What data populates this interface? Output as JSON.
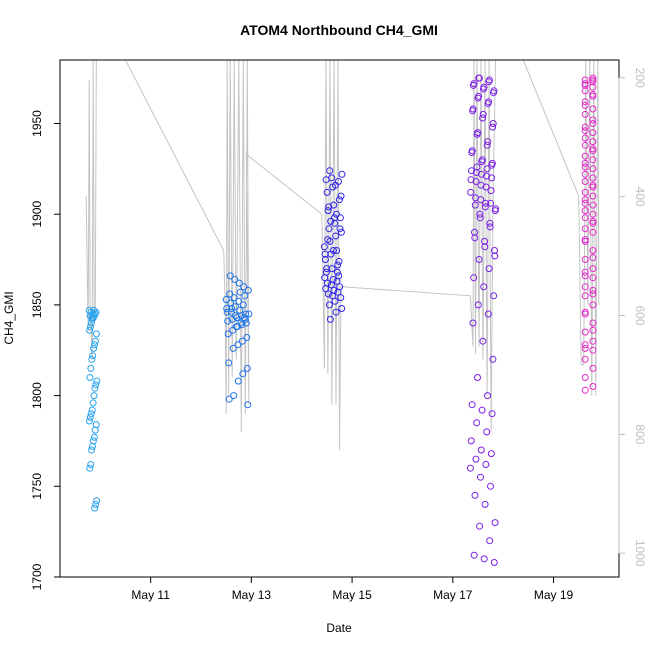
{
  "chart_data": {
    "type": "scatter",
    "title": "ATOM4 Northbound CH4_GMI",
    "xlabel": "Date",
    "ylabel": "CH4_GMI",
    "x_ticks": [
      "May 11",
      "May 13",
      "May 15",
      "May 17",
      "May 19"
    ],
    "x_tick_days": [
      11,
      13,
      15,
      17,
      19
    ],
    "xlim": [
      9.2,
      20.3
    ],
    "ylim": [
      1700,
      1985
    ],
    "y_ticks": [
      1700,
      1750,
      1800,
      1850,
      1900,
      1950
    ],
    "right_axis": {
      "ticks": [
        200,
        400,
        600,
        800,
        1000
      ],
      "lim": [
        1040,
        170
      ],
      "color": "#bfbfbf"
    },
    "series": [
      {
        "color": "#29a3ef",
        "clusters": [
          {
            "day_range": [
              9.78,
              9.93
            ],
            "y": [
              1847,
              1846,
              1845,
              1844,
              1843,
              1842,
              1840,
              1838,
              1836,
              1834,
              1830,
              1828,
              1826,
              1822,
              1820,
              1815,
              1810,
              1808,
              1806,
              1804,
              1800,
              1796,
              1792,
              1790,
              1788,
              1786,
              1784,
              1781,
              1777,
              1775,
              1772,
              1770,
              1762,
              1760,
              1742,
              1740,
              1738,
              1847,
              1845,
              1843,
              1846,
              1844
            ]
          }
        ]
      },
      {
        "color": "#1f74ea",
        "clusters": [
          {
            "day_range": [
              12.5,
              12.95
            ],
            "y": [
              1848,
              1846,
              1845,
              1844,
              1843,
              1842,
              1841,
              1840,
              1839,
              1838,
              1836,
              1834,
              1832,
              1830,
              1828,
              1826,
              1818,
              1815,
              1812,
              1808,
              1800,
              1798,
              1795,
              1850,
              1852,
              1854,
              1856,
              1858,
              1860,
              1862,
              1864,
              1866,
              1845,
              1843,
              1847,
              1849,
              1851,
              1853,
              1855,
              1857,
              1844,
              1846,
              1848,
              1842,
              1840,
              1838
            ]
          }
        ]
      },
      {
        "color": "#2f25e8",
        "clusters": [
          {
            "day_range": [
              14.45,
              14.8
            ],
            "y": [
              1920,
              1919,
              1918,
              1915,
              1912,
              1908,
              1905,
              1902,
              1898,
              1895,
              1892,
              1890,
              1888,
              1885,
              1882,
              1880,
              1878,
              1875,
              1872,
              1870,
              1868,
              1866,
              1864,
              1862,
              1860,
              1858,
              1856,
              1854,
              1852,
              1850,
              1848,
              1846,
              1842,
              1865,
              1863,
              1861,
              1859,
              1857,
              1855,
              1870,
              1874,
              1880,
              1886,
              1892,
              1898,
              1904,
              1910,
              1916,
              1924,
              1922,
              1900,
              1896,
              1878,
              1868
            ]
          }
        ]
      },
      {
        "color": "#7a1fe6",
        "clusters": [
          {
            "day_range": [
              17.35,
              17.85
            ],
            "y": [
              1975,
              1974,
              1972,
              1970,
              1968,
              1965,
              1962,
              1958,
              1955,
              1950,
              1945,
              1940,
              1935,
              1930,
              1928,
              1926,
              1925,
              1924,
              1922,
              1920,
              1918,
              1915,
              1912,
              1908,
              1906,
              1905,
              1904,
              1902,
              1900,
              1895,
              1890,
              1885,
              1880,
              1875,
              1870,
              1865,
              1860,
              1855,
              1850,
              1845,
              1840,
              1830,
              1820,
              1810,
              1800,
              1795,
              1792,
              1790,
              1785,
              1780,
              1775,
              1770,
              1768,
              1765,
              1762,
              1760,
              1755,
              1750,
              1745,
              1740,
              1730,
              1728,
              1720,
              1712,
              1710,
              1708,
              1975,
              1973,
              1971,
              1969,
              1967,
              1964,
              1961,
              1957,
              1953,
              1948,
              1944,
              1938,
              1934,
              1929,
              1927,
              1923,
              1921,
              1919,
              1916,
              1913,
              1909,
              1906,
              1903,
              1898,
              1893,
              1887,
              1882,
              1877
            ]
          }
        ]
      },
      {
        "color": "#e62acb",
        "clusters": [
          {
            "day_range": [
              19.6,
              19.9
            ],
            "y": [
              1975,
              1974,
              1973,
              1972,
              1970,
              1968,
              1965,
              1962,
              1958,
              1955,
              1950,
              1948,
              1945,
              1942,
              1940,
              1938,
              1935,
              1932,
              1930,
              1928,
              1925,
              1922,
              1920,
              1918,
              1915,
              1912,
              1910,
              1908,
              1905,
              1902,
              1900,
              1898,
              1895,
              1892,
              1890,
              1885,
              1880,
              1875,
              1870,
              1868,
              1865,
              1860,
              1858,
              1855,
              1850,
              1845,
              1840,
              1835,
              1830,
              1828,
              1825,
              1820,
              1815,
              1810,
              1805,
              1803,
              1974,
              1971,
              1966,
              1960,
              1952,
              1946,
              1936,
              1926,
              1916,
              1906,
              1896,
              1886,
              1876,
              1866,
              1856,
              1846,
              1836,
              1826
            ]
          }
        ]
      }
    ],
    "altitude_trace": {
      "color": "#c4c4c4",
      "points": [
        [
          9.72,
          1910
        ],
        [
          9.74,
          1870
        ],
        [
          9.76,
          1835
        ],
        [
          9.78,
          1974
        ],
        [
          9.8,
          1850
        ],
        [
          9.82,
          1835
        ],
        [
          9.84,
          1820
        ],
        [
          9.86,
          1985
        ],
        [
          9.88,
          1846
        ],
        [
          9.9,
          1846
        ],
        [
          9.92,
          1985
        ],
        [
          9.94,
          1985
        ],
        [
          10.5,
          1985
        ],
        [
          12.45,
          1880
        ],
        [
          12.48,
          1850
        ],
        [
          12.5,
          1790
        ],
        [
          12.52,
          1985
        ],
        [
          12.55,
          1800
        ],
        [
          12.58,
          1985
        ],
        [
          12.62,
          1810
        ],
        [
          12.66,
          1985
        ],
        [
          12.7,
          1820
        ],
        [
          12.75,
          1985
        ],
        [
          12.8,
          1780
        ],
        [
          12.84,
          1985
        ],
        [
          12.88,
          1790
        ],
        [
          12.92,
          1985
        ],
        [
          12.95,
          1795
        ],
        [
          12.9,
          1933
        ],
        [
          14.4,
          1900
        ],
        [
          14.45,
          1815
        ],
        [
          14.48,
          1985
        ],
        [
          14.52,
          1812
        ],
        [
          14.56,
          1985
        ],
        [
          14.6,
          1795
        ],
        [
          14.64,
          1985
        ],
        [
          14.68,
          1795
        ],
        [
          14.72,
          1985
        ],
        [
          14.75,
          1770
        ],
        [
          14.78,
          1860
        ],
        [
          14.8,
          1860
        ],
        [
          17.35,
          1855
        ],
        [
          17.4,
          1827
        ],
        [
          17.42,
          1985
        ],
        [
          17.45,
          1823
        ],
        [
          17.48,
          1985
        ],
        [
          17.52,
          1827
        ],
        [
          17.56,
          1985
        ],
        [
          17.6,
          1820
        ],
        [
          17.64,
          1985
        ],
        [
          17.68,
          1800
        ],
        [
          17.72,
          1985
        ],
        [
          17.76,
          1780
        ],
        [
          17.8,
          1910
        ],
        [
          17.85,
          1985
        ],
        [
          17.9,
          1985
        ],
        [
          18.4,
          1985
        ],
        [
          19.5,
          1910
        ],
        [
          19.55,
          1817
        ],
        [
          19.6,
          1817
        ],
        [
          19.64,
          1985
        ],
        [
          19.68,
          1850
        ],
        [
          19.72,
          1985
        ],
        [
          19.76,
          1800
        ],
        [
          19.8,
          1985
        ],
        [
          19.84,
          1800
        ],
        [
          19.88,
          1985
        ],
        [
          19.9,
          1850
        ]
      ]
    }
  }
}
